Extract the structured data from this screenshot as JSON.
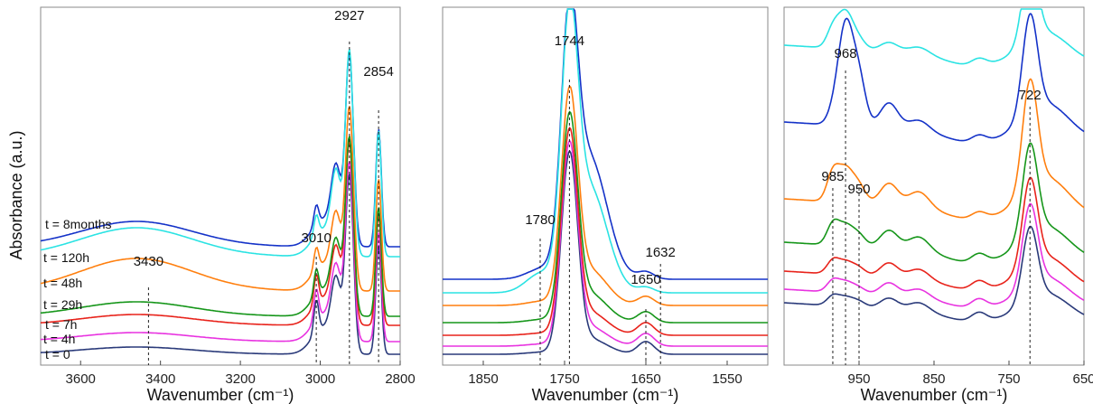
{
  "ylabel": "Absorbance (a.u.)",
  "chart_data": [
    {
      "type": "line",
      "xlabel": "Wavenumber (cm⁻¹)",
      "xlim": [
        3700,
        2800
      ],
      "xticks": [
        3600,
        3400,
        3200,
        3000,
        2800
      ],
      "xtick_labels": [
        "3600",
        "3400",
        "3200",
        "3000",
        "2800"
      ],
      "peaks": [
        {
          "label": "2927",
          "x": 2927,
          "line": true
        },
        {
          "label": "2854",
          "x": 2854,
          "line": true
        },
        {
          "label": "3010",
          "x": 3010,
          "line": true
        },
        {
          "label": "3430",
          "x": 3430,
          "line": true
        }
      ],
      "time_labels": [
        "t = 8months",
        "t = 120h",
        "t = 48h",
        "t = 29h",
        "t = 7h",
        "t = 4h",
        "t = 0"
      ]
    },
    {
      "type": "line",
      "xlabel": "Wavenumber (cm⁻¹)",
      "xlim": [
        1900,
        1500
      ],
      "xticks": [
        1850,
        1750,
        1650,
        1550
      ],
      "xtick_labels": [
        "1850",
        "1750",
        "1650",
        "1550"
      ],
      "peaks": [
        {
          "label": "1744",
          "x": 1744,
          "line": true
        },
        {
          "label": "1780",
          "x": 1780,
          "line": true
        },
        {
          "label": "1650",
          "x": 1650,
          "line": true
        },
        {
          "label": "1632",
          "x": 1632,
          "line": true
        }
      ]
    },
    {
      "type": "line",
      "xlabel": "Wavenumber (cm⁻¹)",
      "xlim": [
        1050,
        650
      ],
      "xticks": [
        950,
        850,
        750,
        650
      ],
      "xtick_labels": [
        "950",
        "850",
        "750",
        "650"
      ],
      "peaks": [
        {
          "label": "968",
          "x": 968,
          "line": true
        },
        {
          "label": "722",
          "x": 722,
          "line": true
        },
        {
          "label": "985",
          "x": 985,
          "line": true
        },
        {
          "label": "950",
          "x": 950,
          "line": true
        }
      ]
    }
  ],
  "series_colors": [
    "#2be3e3",
    "#1432c8",
    "#ff7f0e",
    "#16961a",
    "#e8231b",
    "#e833e0",
    "#2a3a7a"
  ]
}
